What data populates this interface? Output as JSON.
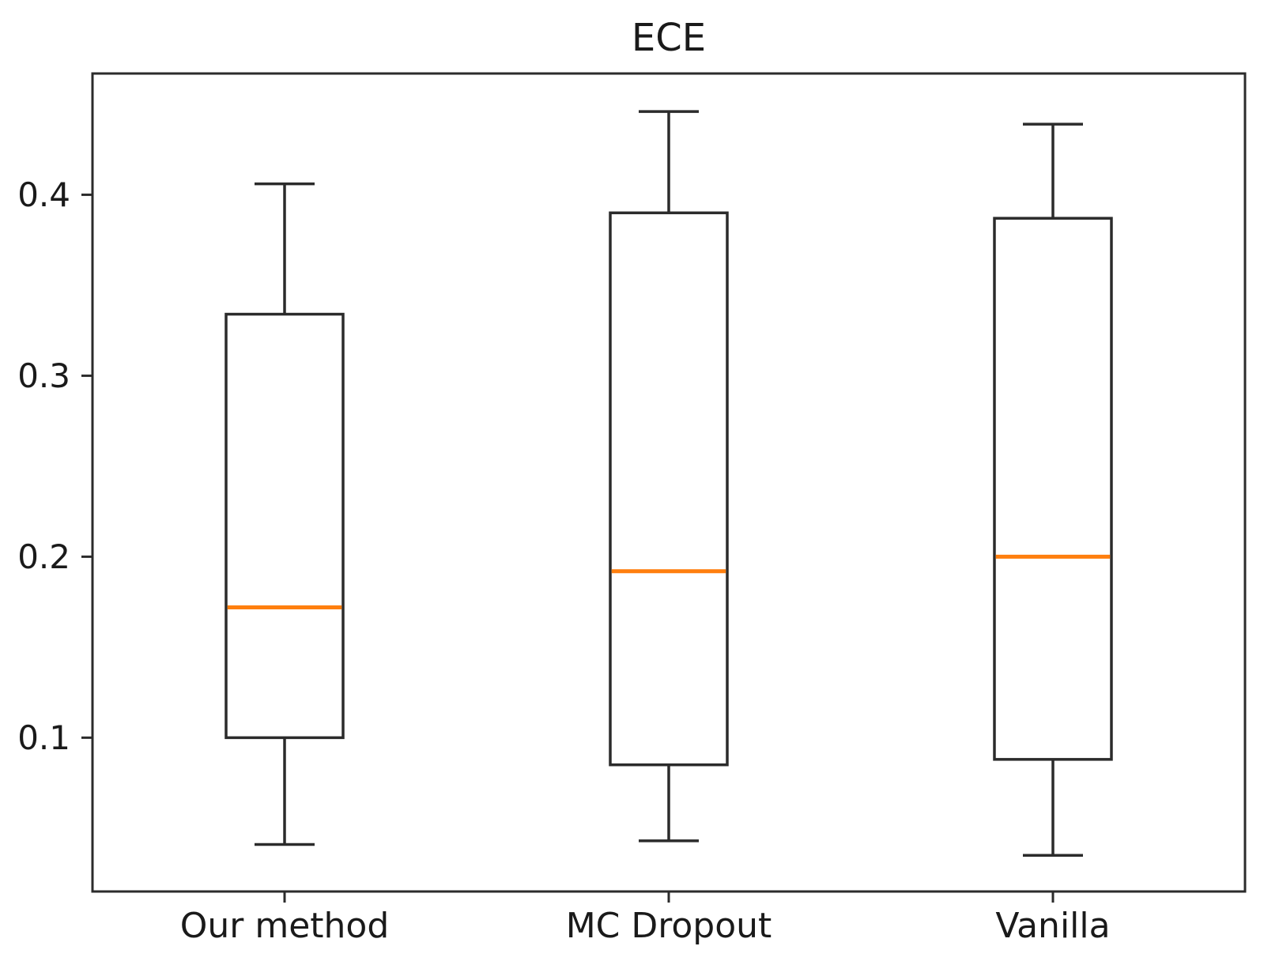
{
  "figure": {
    "title": "ECE"
  },
  "chart_data": {
    "type": "boxplot",
    "title": "ECE",
    "xlabel": "",
    "ylabel": "",
    "categories": [
      "Our method",
      "MC Dropout",
      "Vanilla"
    ],
    "series": [
      {
        "name": "Our method",
        "whisker_low": 0.041,
        "q1": 0.1,
        "median": 0.172,
        "q3": 0.334,
        "whisker_high": 0.406
      },
      {
        "name": "MC Dropout",
        "whisker_low": 0.043,
        "q1": 0.085,
        "median": 0.192,
        "q3": 0.39,
        "whisker_high": 0.446
      },
      {
        "name": "Vanilla",
        "whisker_low": 0.035,
        "q1": 0.088,
        "median": 0.2,
        "q3": 0.387,
        "whisker_high": 0.439
      }
    ],
    "yticks": [
      {
        "value": 0.1,
        "label": "0.1"
      },
      {
        "value": 0.2,
        "label": "0.2"
      },
      {
        "value": 0.3,
        "label": "0.3"
      },
      {
        "value": 0.4,
        "label": "0.4"
      }
    ],
    "ylim": [
      0.015,
      0.467
    ],
    "grid": false,
    "colors": {
      "line": "#2b2b2b",
      "median": "#ff7f0e",
      "text": "#1a1a1a",
      "background": "#ffffff"
    }
  }
}
